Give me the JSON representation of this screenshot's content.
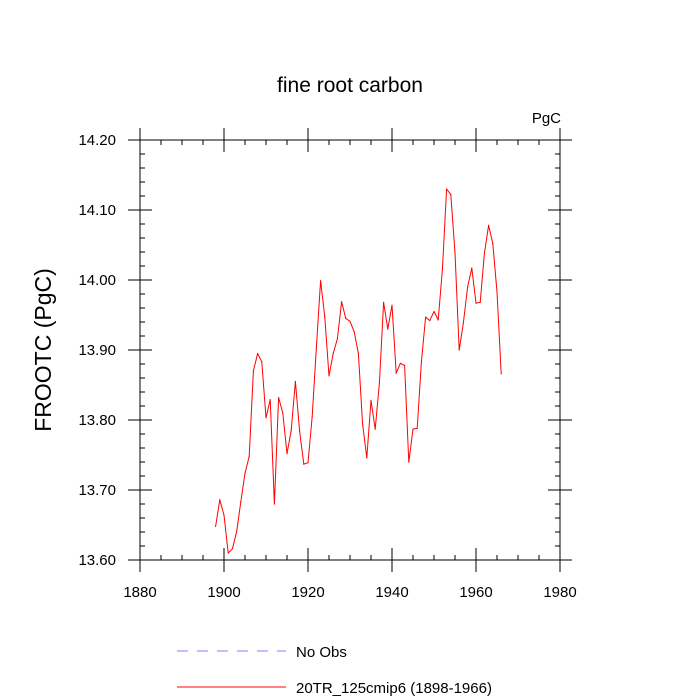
{
  "chart_data": {
    "type": "line",
    "title": "fine root carbon",
    "units_label": "PgC",
    "ylabel": "FROOTC  (PgC)",
    "xlabel": "",
    "xlim": [
      1880,
      1980
    ],
    "ylim": [
      13.6,
      14.2
    ],
    "x_ticks": [
      1880,
      1900,
      1920,
      1940,
      1960,
      1980
    ],
    "x_tick_labels": [
      "1880",
      "1900",
      "1920",
      "1940",
      "1960",
      "1980"
    ],
    "y_ticks": [
      13.6,
      13.7,
      13.8,
      13.9,
      14.0,
      14.1,
      14.2
    ],
    "y_tick_labels": [
      "13.60",
      "13.70",
      "13.80",
      "13.90",
      "14.00",
      "14.10",
      "14.20"
    ],
    "series": [
      {
        "name": "20TR_125cmip6 (1898-1966)",
        "color": "#ff0000",
        "style": "solid",
        "x": [
          1898,
          1899,
          1900,
          1901,
          1902,
          1903,
          1904,
          1905,
          1906,
          1907,
          1908,
          1909,
          1910,
          1911,
          1912,
          1913,
          1914,
          1915,
          1916,
          1917,
          1918,
          1919,
          1920,
          1921,
          1922,
          1923,
          1924,
          1925,
          1926,
          1927,
          1928,
          1929,
          1930,
          1931,
          1932,
          1933,
          1934,
          1935,
          1936,
          1937,
          1938,
          1939,
          1940,
          1941,
          1942,
          1943,
          1944,
          1945,
          1946,
          1947,
          1948,
          1949,
          1950,
          1951,
          1952,
          1953,
          1954,
          1955,
          1956,
          1957,
          1958,
          1959,
          1960,
          1961,
          1962,
          1963,
          1964,
          1965,
          1966
        ],
        "values": [
          13.648,
          13.686,
          13.664,
          13.61,
          13.616,
          13.64,
          13.683,
          13.724,
          13.748,
          13.87,
          13.895,
          13.883,
          13.803,
          13.829,
          13.68,
          13.832,
          13.81,
          13.752,
          13.785,
          13.855,
          13.784,
          13.737,
          13.739,
          13.805,
          13.904,
          13.999,
          13.947,
          13.863,
          13.895,
          13.916,
          13.969,
          13.945,
          13.941,
          13.926,
          13.895,
          13.794,
          13.746,
          13.828,
          13.787,
          13.853,
          13.968,
          13.93,
          13.964,
          13.867,
          13.881,
          13.878,
          13.74,
          13.787,
          13.788,
          13.883,
          13.947,
          13.942,
          13.955,
          13.943,
          14.015,
          14.13,
          14.122,
          14.039,
          13.9,
          13.939,
          13.99,
          14.017,
          13.967,
          13.968,
          14.038,
          14.078,
          14.052,
          13.983,
          13.866
        ]
      }
    ],
    "legend": [
      {
        "name": "No Obs",
        "color": "#8080ff",
        "style": "dashed"
      },
      {
        "name": "20TR_125cmip6 (1898-1966)",
        "color": "#ff0000",
        "style": "solid"
      }
    ]
  }
}
